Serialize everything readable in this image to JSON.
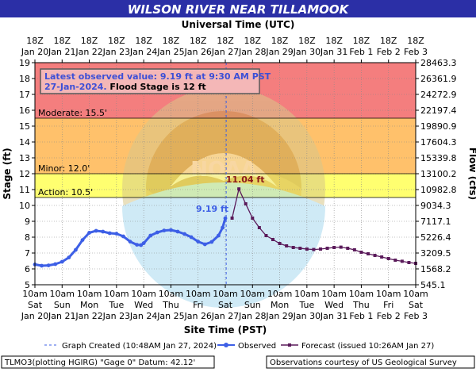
{
  "chart_data": {
    "type": "line",
    "title": "WILSON RIVER NEAR TILLAMOOK",
    "top_axis_title": "Universal Time (UTC)",
    "bottom_axis_title": "Site Time (PST)",
    "ylabel": "Stage (ft)",
    "y2label": "Flow (cfs)",
    "ylim": [
      5,
      19
    ],
    "y_ticks": [
      "5",
      "6",
      "7",
      "8",
      "9",
      "10",
      "11",
      "12",
      "13",
      "14",
      "15",
      "16",
      "17",
      "18",
      "19"
    ],
    "flow_ticks": [
      "545.1",
      "1568.2",
      "3209.5",
      "5226.4",
      "7117.1",
      "9034.3",
      "10982.8",
      "13100.2",
      "15339.8",
      "17604.3",
      "19890.9",
      "22197.4",
      "24272.9",
      "26361.9",
      "28463.3"
    ],
    "x_range_days": [
      0,
      14
    ],
    "top_ticks": [
      {
        "t": "18Z",
        "d": "Jan 20"
      },
      {
        "t": "18Z",
        "d": "Jan 21"
      },
      {
        "t": "18Z",
        "d": "Jan 22"
      },
      {
        "t": "18Z",
        "d": "Jan 23"
      },
      {
        "t": "18Z",
        "d": "Jan 24"
      },
      {
        "t": "18Z",
        "d": "Jan 25"
      },
      {
        "t": "18Z",
        "d": "Jan 26"
      },
      {
        "t": "18Z",
        "d": "Jan 27"
      },
      {
        "t": "18Z",
        "d": "Jan 28"
      },
      {
        "t": "18Z",
        "d": "Jan 29"
      },
      {
        "t": "18Z",
        "d": "Jan 30"
      },
      {
        "t": "18Z",
        "d": "Jan 31"
      },
      {
        "t": "18Z",
        "d": "Feb 1"
      },
      {
        "t": "18Z",
        "d": "Feb 2"
      },
      {
        "t": "18Z",
        "d": "Feb 3"
      }
    ],
    "bottom_ticks": [
      {
        "t": "10am",
        "w": "Sat",
        "d": "Jan 20"
      },
      {
        "t": "10am",
        "w": "Sun",
        "d": "Jan 21"
      },
      {
        "t": "10am",
        "w": "Mon",
        "d": "Jan 22"
      },
      {
        "t": "10am",
        "w": "Tue",
        "d": "Jan 23"
      },
      {
        "t": "10am",
        "w": "Wed",
        "d": "Jan 24"
      },
      {
        "t": "10am",
        "w": "Thu",
        "d": "Jan 25"
      },
      {
        "t": "10am",
        "w": "Fri",
        "d": "Jan 26"
      },
      {
        "t": "10am",
        "w": "Sat",
        "d": "Jan 27"
      },
      {
        "t": "10am",
        "w": "Sun",
        "d": "Jan 28"
      },
      {
        "t": "10am",
        "w": "Mon",
        "d": "Jan 29"
      },
      {
        "t": "10am",
        "w": "Tue",
        "d": "Jan 30"
      },
      {
        "t": "10am",
        "w": "Wed",
        "d": "Jan 31"
      },
      {
        "t": "10am",
        "w": "Thu",
        "d": "Feb 1"
      },
      {
        "t": "10am",
        "w": "Fri",
        "d": "Feb 2"
      },
      {
        "t": "10am",
        "w": "Sat",
        "d": "Feb 3"
      }
    ],
    "categories": [
      {
        "name": "Moderate",
        "label": "Moderate: 15.5'",
        "from": 15.5,
        "to": 19,
        "color": "#f47e7e"
      },
      {
        "name": "Minor",
        "label": "Minor: 12.0'",
        "from": 12.0,
        "to": 15.5,
        "color": "#ffc16b"
      },
      {
        "name": "Action",
        "label": "Action: 10.5'",
        "from": 10.5,
        "to": 12.0,
        "color": "#ffff70"
      }
    ],
    "latest": {
      "line1": "Latest observed value: 9.19 ft at 9:30 AM PST",
      "line2a": "27-Jan-2024.",
      "line2b": " Flood Stage is 12 ft"
    },
    "annotations": {
      "observed_label": "9.19 ft",
      "peak_label": "11.04 ft"
    },
    "graph_created_day": 7.033,
    "series": [
      {
        "name": "Observed",
        "color": "#3d5fe6",
        "points": [
          [
            0.0,
            6.28
          ],
          [
            0.25,
            6.2
          ],
          [
            0.5,
            6.22
          ],
          [
            0.75,
            6.3
          ],
          [
            1.0,
            6.45
          ],
          [
            1.25,
            6.72
          ],
          [
            1.5,
            7.2
          ],
          [
            1.75,
            7.82
          ],
          [
            2.0,
            8.28
          ],
          [
            2.25,
            8.4
          ],
          [
            2.5,
            8.35
          ],
          [
            2.75,
            8.25
          ],
          [
            3.0,
            8.22
          ],
          [
            3.25,
            8.05
          ],
          [
            3.5,
            7.72
          ],
          [
            3.75,
            7.52
          ],
          [
            3.9,
            7.5
          ],
          [
            4.0,
            7.62
          ],
          [
            4.25,
            8.1
          ],
          [
            4.5,
            8.3
          ],
          [
            4.75,
            8.42
          ],
          [
            5.0,
            8.45
          ],
          [
            5.25,
            8.35
          ],
          [
            5.5,
            8.2
          ],
          [
            5.75,
            8.0
          ],
          [
            6.0,
            7.72
          ],
          [
            6.25,
            7.55
          ],
          [
            6.5,
            7.7
          ],
          [
            6.75,
            8.1
          ],
          [
            6.9,
            8.6
          ],
          [
            7.0,
            9.19
          ]
        ]
      },
      {
        "name": "Forecast (issued 10:26AM Jan 27)",
        "color": "#5a1a5a",
        "points": [
          [
            7.25,
            9.2
          ],
          [
            7.5,
            11.04
          ],
          [
            7.75,
            10.1
          ],
          [
            8.0,
            9.2
          ],
          [
            8.25,
            8.6
          ],
          [
            8.5,
            8.1
          ],
          [
            8.75,
            7.85
          ],
          [
            9.0,
            7.6
          ],
          [
            9.25,
            7.45
          ],
          [
            9.5,
            7.35
          ],
          [
            9.75,
            7.3
          ],
          [
            10.0,
            7.25
          ],
          [
            10.25,
            7.22
          ],
          [
            10.5,
            7.25
          ],
          [
            10.75,
            7.3
          ],
          [
            11.0,
            7.35
          ],
          [
            11.25,
            7.37
          ],
          [
            11.5,
            7.3
          ],
          [
            11.75,
            7.2
          ],
          [
            12.0,
            7.05
          ],
          [
            12.25,
            6.95
          ],
          [
            12.5,
            6.85
          ],
          [
            12.75,
            6.75
          ],
          [
            13.0,
            6.65
          ],
          [
            13.25,
            6.55
          ],
          [
            13.5,
            6.48
          ],
          [
            13.75,
            6.4
          ],
          [
            14.0,
            6.35
          ]
        ]
      }
    ],
    "legend": {
      "created": "Graph Created (10:48AM Jan 27, 2024)",
      "observed": "Observed",
      "forecast": "Forecast (issued 10:26AM Jan 27)"
    }
  },
  "footer": {
    "left": "TLMO3(plotting HGIRG) \"Gage 0\" Datum: 42.12'",
    "right": "Observations courtesy of US Geological Survey"
  },
  "colors": {
    "title_bar": "#2b2fa6",
    "title_text": "#ffffff",
    "grid": "#7f7f7f",
    "created_line": "#3d5fe6"
  }
}
